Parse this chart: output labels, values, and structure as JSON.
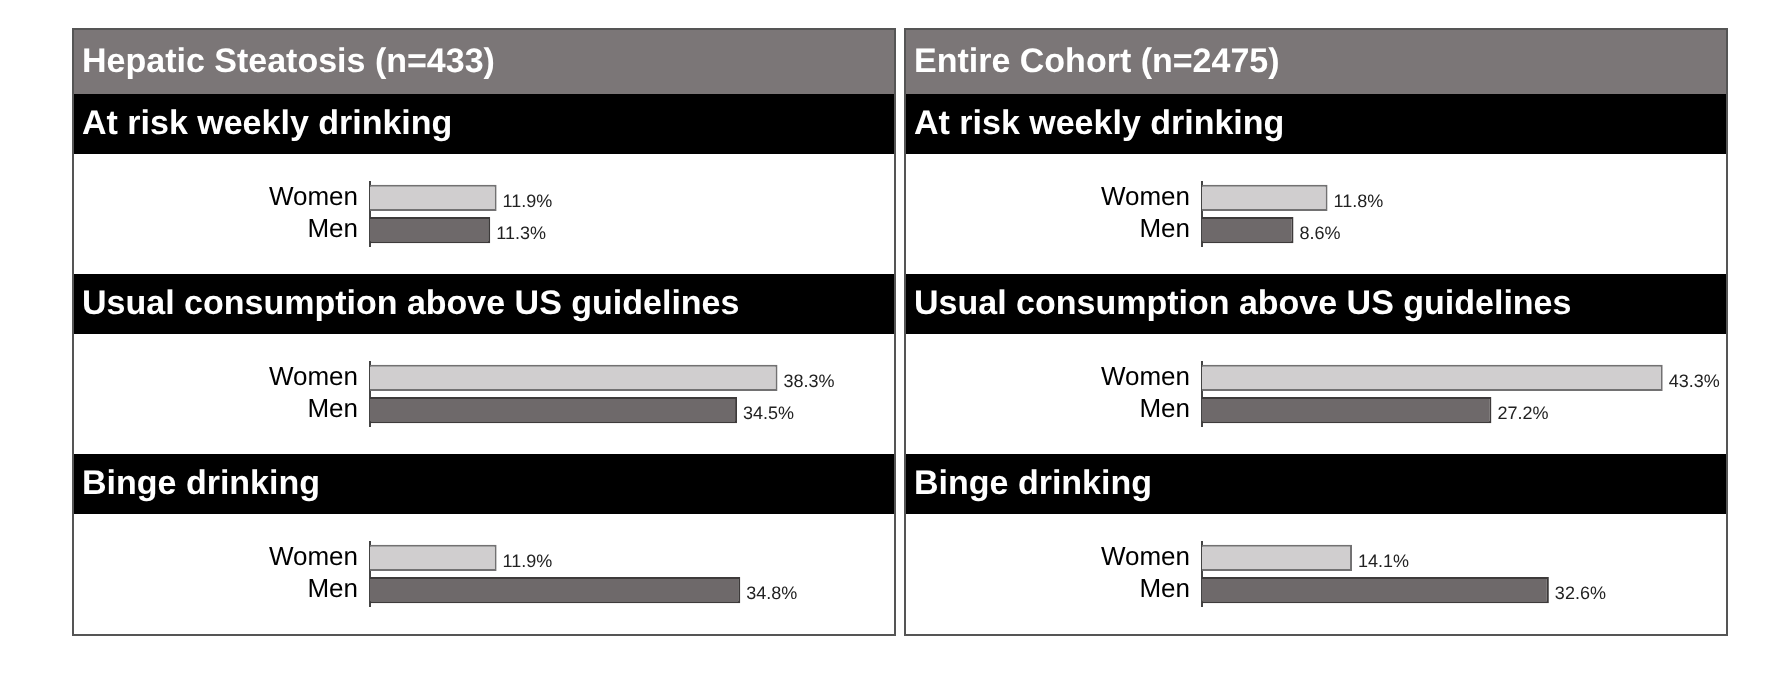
{
  "chart_data": [
    {
      "type": "bar",
      "orientation": "horizontal",
      "annotations": [
        "Hepatic Steatosis (n=433)"
      ],
      "title": "At risk weekly drinking",
      "categories": [
        "Women",
        "Men"
      ],
      "values": [
        11.9,
        11.3
      ],
      "colors": [
        "#d0cecf",
        "#6e696a"
      ],
      "value_labels": [
        "11.9%",
        "11.3%"
      ]
    },
    {
      "type": "bar",
      "orientation": "horizontal",
      "title": "Usual consumption above US guidelines",
      "categories": [
        "Women",
        "Men"
      ],
      "values": [
        38.3,
        34.5
      ],
      "colors": [
        "#d0cecf",
        "#6e696a"
      ],
      "value_labels": [
        "38.3%",
        "34.5%"
      ]
    },
    {
      "type": "bar",
      "orientation": "horizontal",
      "title": "Binge drinking",
      "categories": [
        "Women",
        "Men"
      ],
      "values": [
        11.9,
        34.8
      ],
      "colors": [
        "#d0cecf",
        "#6e696a"
      ],
      "value_labels": [
        "11.9%",
        "34.8%"
      ]
    },
    {
      "type": "bar",
      "orientation": "horizontal",
      "annotations": [
        "Entire Cohort (n=2475)"
      ],
      "title": "At risk weekly drinking",
      "categories": [
        "Women",
        "Men"
      ],
      "values": [
        11.8,
        8.6
      ],
      "colors": [
        "#d0cecf",
        "#6e696a"
      ],
      "value_labels": [
        "11.8%",
        "8.6%"
      ]
    },
    {
      "type": "bar",
      "orientation": "horizontal",
      "title": "Usual consumption above US guidelines",
      "categories": [
        "Women",
        "Men"
      ],
      "values": [
        43.3,
        27.2
      ],
      "colors": [
        "#d0cecf",
        "#6e696a"
      ],
      "value_labels": [
        "43.3%",
        "27.2%"
      ]
    },
    {
      "type": "bar",
      "orientation": "horizontal",
      "title": "Binge drinking",
      "categories": [
        "Women",
        "Men"
      ],
      "values": [
        14.1,
        32.6
      ],
      "colors": [
        "#d0cecf",
        "#6e696a"
      ],
      "value_labels": [
        "14.1%",
        "32.6%"
      ]
    }
  ]
}
